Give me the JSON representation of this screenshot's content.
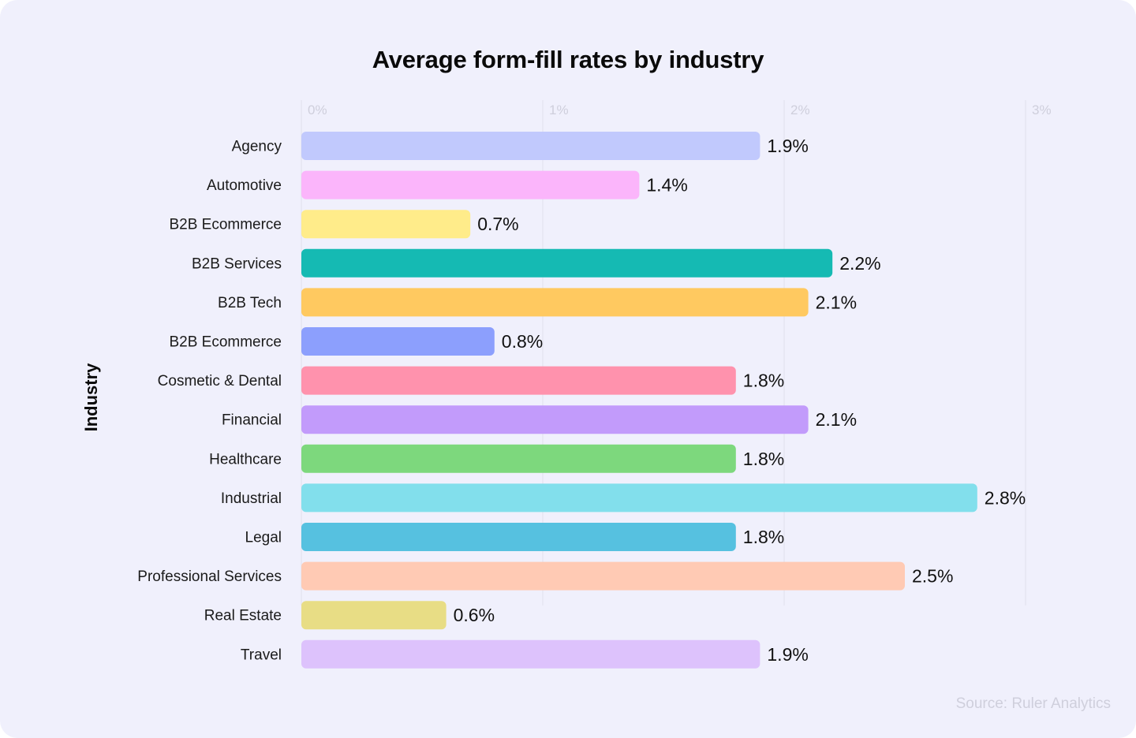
{
  "chart_data": {
    "type": "bar",
    "orientation": "horizontal",
    "title": "Average form-fill rates by industry",
    "xlabel": "",
    "ylabel": "Industry",
    "xlim": [
      0,
      3
    ],
    "x_ticks": [
      0,
      1,
      2,
      3
    ],
    "x_tick_labels": [
      "0%",
      "1%",
      "2%",
      "3%"
    ],
    "x_tick_position": "top",
    "grid": true,
    "value_suffix": "%",
    "categories": [
      "Agency",
      "Automotive",
      "B2B Ecommerce",
      "B2B Services",
      "B2B Tech",
      "B2B Ecommerce",
      "Cosmetic & Dental",
      "Financial",
      "Healthcare",
      "Industrial",
      "Legal",
      "Professional Services",
      "Real Estate",
      "Travel"
    ],
    "values": [
      1.9,
      1.4,
      0.7,
      2.2,
      2.1,
      0.8,
      1.8,
      2.1,
      1.8,
      2.8,
      1.8,
      2.5,
      0.6,
      1.9
    ],
    "value_labels": [
      "1.9%",
      "1.4%",
      "0.7%",
      "2.2%",
      "2.1%",
      "0.8%",
      "1.8%",
      "2.1%",
      "1.8%",
      "2.8%",
      "1.8%",
      "2.5%",
      "0.6%",
      "1.9%"
    ],
    "colors": [
      "#C1C9FD",
      "#FBB5FB",
      "#FFEC8A",
      "#15BAB3",
      "#FFC960",
      "#8C9FFD",
      "#FF92AD",
      "#C29BFB",
      "#7DD87D",
      "#82DFEC",
      "#56C1E0",
      "#FFCAB4",
      "#E8DD85",
      "#DDC2FC"
    ],
    "source": "Source: Ruler Analytics"
  },
  "colors": {
    "background": "#F0F0FC",
    "gridline": "#E0E0EC",
    "tick_text": "#CFCFDC",
    "text": "#111111"
  }
}
